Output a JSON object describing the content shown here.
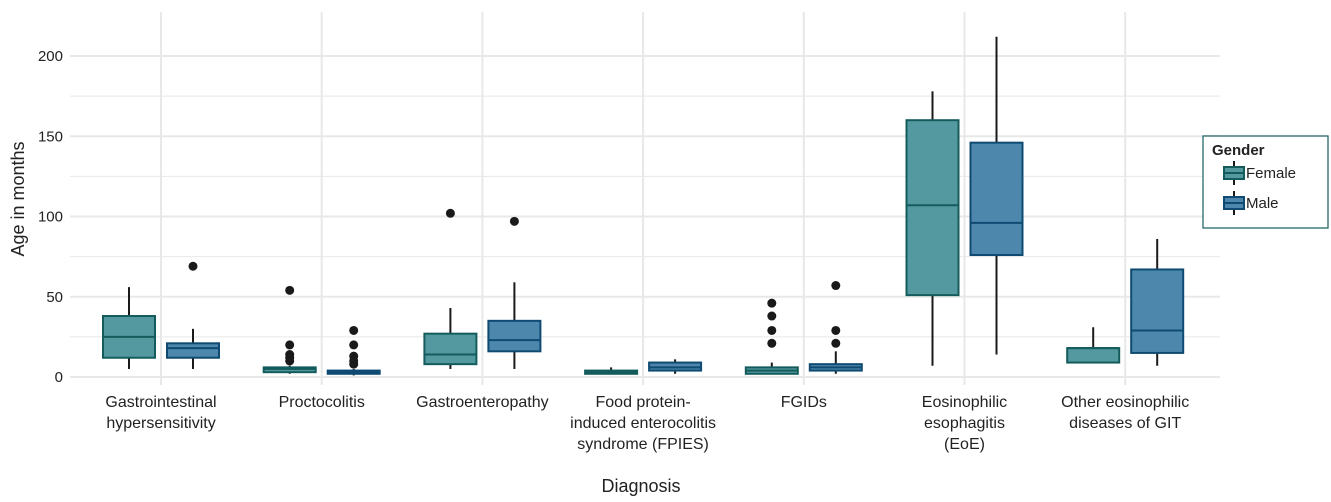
{
  "chart_data": {
    "type": "boxplot",
    "xlabel": "Diagnosis",
    "ylabel": "Age in months",
    "ylim": [
      -5,
      225
    ],
    "yticks": [
      0,
      50,
      100,
      150,
      200
    ],
    "grid": true,
    "legend": {
      "title": "Gender",
      "placement": "right",
      "entries": [
        "Female",
        "Male"
      ]
    },
    "colors": {
      "Female": {
        "fill": "#5499a0",
        "stroke": "#145c5c"
      },
      "Male": {
        "fill": "#4d88ac",
        "stroke": "#0f4a72"
      },
      "grid": "#e8e8e8",
      "point": "#1a1a1a",
      "whisker": "#1a1a1a"
    },
    "categories": [
      [
        "Gastrointestinal",
        "hypersensitivity"
      ],
      [
        "Proctocolitis"
      ],
      [
        "Gastroenteropathy"
      ],
      [
        "Food protein-",
        "induced enterocolitis",
        "syndrome (FPIES)"
      ],
      [
        "FGIDs"
      ],
      [
        "Eosinophilic",
        "esophagitis",
        "(EoE)"
      ],
      [
        "Other eosinophilic",
        "diseases of GIT"
      ]
    ],
    "series": [
      {
        "name": "Female",
        "boxes": [
          {
            "min": 5,
            "q1": 12,
            "median": 25,
            "q3": 38,
            "max": 56,
            "outliers": []
          },
          {
            "min": 2,
            "q1": 3,
            "median": 5,
            "q3": 6,
            "max": 7,
            "outliers": [
              10,
              12,
              14,
              20,
              54
            ]
          },
          {
            "min": 5,
            "q1": 8,
            "median": 14,
            "q3": 27,
            "max": 43,
            "outliers": [
              102
            ]
          },
          {
            "min": 2,
            "q1": 2,
            "median": 3,
            "q3": 4,
            "max": 6,
            "outliers": []
          },
          {
            "min": 2,
            "q1": 2,
            "median": 4,
            "q3": 6,
            "max": 9,
            "outliers": [
              21,
              29,
              38,
              46
            ]
          },
          {
            "min": 7,
            "q1": 51,
            "median": 107,
            "q3": 160,
            "max": 178,
            "outliers": []
          },
          {
            "min": 9,
            "q1": 9,
            "median": 18,
            "q3": 18,
            "max": 31,
            "outliers": []
          }
        ]
      },
      {
        "name": "Male",
        "boxes": [
          {
            "min": 5,
            "q1": 12,
            "median": 18,
            "q3": 21,
            "max": 30,
            "outliers": [
              69
            ]
          },
          {
            "min": 1,
            "q1": 2,
            "median": 3,
            "q3": 4,
            "max": 5,
            "outliers": [
              8,
              10,
              13,
              20,
              29
            ]
          },
          {
            "min": 5,
            "q1": 16,
            "median": 23,
            "q3": 35,
            "max": 59,
            "outliers": [
              97
            ]
          },
          {
            "min": 2,
            "q1": 4,
            "median": 6,
            "q3": 9,
            "max": 11,
            "outliers": []
          },
          {
            "min": 2,
            "q1": 4,
            "median": 6,
            "q3": 8,
            "max": 16,
            "outliers": [
              21,
              29,
              57
            ]
          },
          {
            "min": 14,
            "q1": 76,
            "median": 96,
            "q3": 146,
            "max": 212,
            "outliers": []
          },
          {
            "min": 7,
            "q1": 15,
            "median": 29,
            "q3": 67,
            "max": 86,
            "outliers": []
          }
        ]
      }
    ]
  }
}
